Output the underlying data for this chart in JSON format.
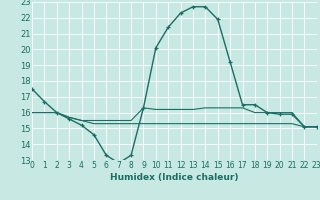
{
  "xlabel": "Humidex (Indice chaleur)",
  "xlim": [
    0,
    23
  ],
  "ylim": [
    13,
    23
  ],
  "yticks": [
    13,
    14,
    15,
    16,
    17,
    18,
    19,
    20,
    21,
    22,
    23
  ],
  "xticks": [
    0,
    1,
    2,
    3,
    4,
    5,
    6,
    7,
    8,
    9,
    10,
    11,
    12,
    13,
    14,
    15,
    16,
    17,
    18,
    19,
    20,
    21,
    22,
    23
  ],
  "background_color": "#c8e8e4",
  "grid_color": "#ffffff",
  "line_color": "#1a6e64",
  "line1_x": [
    0,
    1,
    2,
    3,
    4,
    5,
    6,
    7,
    8,
    9,
    10,
    11,
    12,
    13,
    14,
    15,
    16,
    17,
    18,
    19,
    20,
    21,
    22,
    23
  ],
  "line1_y": [
    17.5,
    16.7,
    16.0,
    15.6,
    15.2,
    14.6,
    13.3,
    12.8,
    13.3,
    16.3,
    20.1,
    21.4,
    22.3,
    22.7,
    22.7,
    21.9,
    19.2,
    16.5,
    16.5,
    16.0,
    15.9,
    15.9,
    15.1,
    15.1
  ],
  "line2_x": [
    0,
    1,
    2,
    3,
    4,
    5,
    6,
    7,
    8,
    9,
    10,
    11,
    12,
    13,
    14,
    15,
    16,
    17,
    18,
    19,
    20,
    21,
    22,
    23
  ],
  "line2_y": [
    16.0,
    16.0,
    16.0,
    15.7,
    15.5,
    15.5,
    15.5,
    15.5,
    15.5,
    16.3,
    16.2,
    16.2,
    16.2,
    16.2,
    16.3,
    16.3,
    16.3,
    16.3,
    16.0,
    16.0,
    16.0,
    16.0,
    15.1,
    15.1
  ],
  "line3_x": [
    0,
    1,
    2,
    3,
    4,
    5,
    6,
    7,
    8,
    9,
    10,
    11,
    12,
    13,
    14,
    15,
    16,
    17,
    18,
    19,
    20,
    21,
    22,
    23
  ],
  "line3_y": [
    16.0,
    16.0,
    16.0,
    15.7,
    15.5,
    15.3,
    15.3,
    15.3,
    15.3,
    15.3,
    15.3,
    15.3,
    15.3,
    15.3,
    15.3,
    15.3,
    15.3,
    15.3,
    15.3,
    15.3,
    15.3,
    15.3,
    15.1,
    15.1
  ]
}
